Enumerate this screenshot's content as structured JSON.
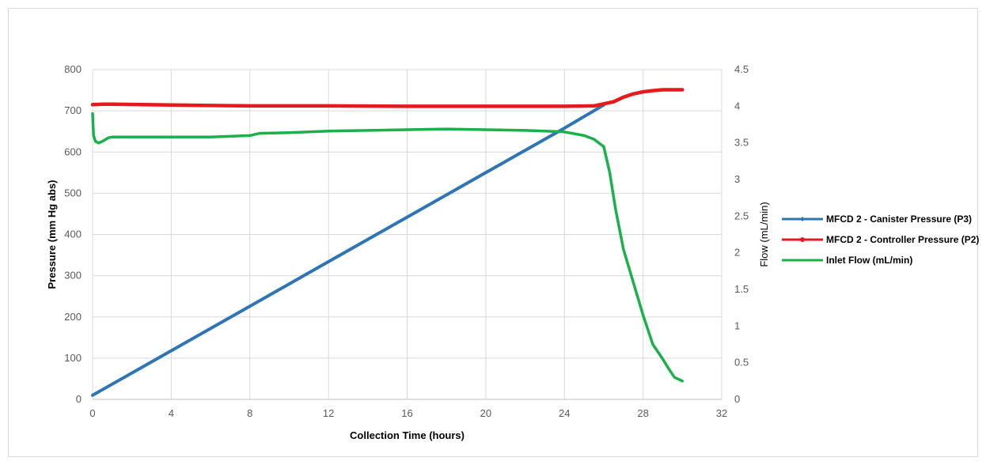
{
  "chart_data": {
    "type": "line",
    "xlabel": "Collection Time (hours)",
    "ylabel_left": "Pressure (mm Hg abs)",
    "ylabel_right": "Flow (mL/min)",
    "xlim": [
      0,
      32
    ],
    "ylim_left": [
      0,
      800
    ],
    "ylim_right": [
      0,
      4.5
    ],
    "x_ticks": [
      "0",
      "4",
      "8",
      "12",
      "16",
      "20",
      "24",
      "28",
      "32"
    ],
    "y_left_ticks": [
      "0",
      "100",
      "200",
      "300",
      "400",
      "500",
      "600",
      "700",
      "800"
    ],
    "y_right_ticks": [
      "0",
      "0.5",
      "1",
      "1.5",
      "2",
      "2.5",
      "3",
      "3.5",
      "4",
      "4.5"
    ],
    "grid": true,
    "legend_position": "right",
    "series": [
      {
        "name": "MFCD 2 - Canister Pressure (P3)",
        "axis": "left",
        "color": "#2e75b6",
        "marker": "diamond",
        "x": [
          0,
          4,
          8,
          12,
          16,
          20,
          24,
          26
        ],
        "y": [
          10,
          118,
          226,
          334,
          442,
          550,
          658,
          714
        ]
      },
      {
        "name": "MFCD 2 - Controller Pressure (P2)",
        "axis": "left",
        "color": "#e8191c",
        "marker": "circle",
        "x": [
          0,
          0.5,
          1,
          4,
          8,
          12,
          16,
          20,
          24,
          25.5,
          26.5,
          27,
          27.5,
          28,
          28.5,
          29,
          30
        ],
        "y": [
          715,
          716,
          716,
          714,
          712,
          712,
          711,
          711,
          711,
          712,
          722,
          733,
          741,
          746,
          749,
          751,
          751
        ]
      },
      {
        "name": "Inlet Flow (mL/min)",
        "axis": "right",
        "color": "#1ab04a",
        "marker": "none",
        "x": [
          0,
          0.05,
          0.15,
          0.3,
          0.5,
          0.8,
          1,
          2,
          4,
          6,
          8,
          8.5,
          10,
          12,
          16,
          18,
          20,
          22,
          23,
          24,
          25,
          25.5,
          26,
          26.3,
          26.6,
          27,
          27.5,
          28,
          28.5,
          29,
          29.3,
          29.6,
          30
        ],
        "y": [
          3.9,
          3.6,
          3.52,
          3.5,
          3.52,
          3.57,
          3.58,
          3.58,
          3.58,
          3.58,
          3.6,
          3.63,
          3.64,
          3.66,
          3.68,
          3.69,
          3.68,
          3.67,
          3.66,
          3.65,
          3.6,
          3.55,
          3.45,
          3.1,
          2.6,
          2.05,
          1.6,
          1.15,
          0.75,
          0.55,
          0.42,
          0.3,
          0.25
        ]
      }
    ]
  }
}
